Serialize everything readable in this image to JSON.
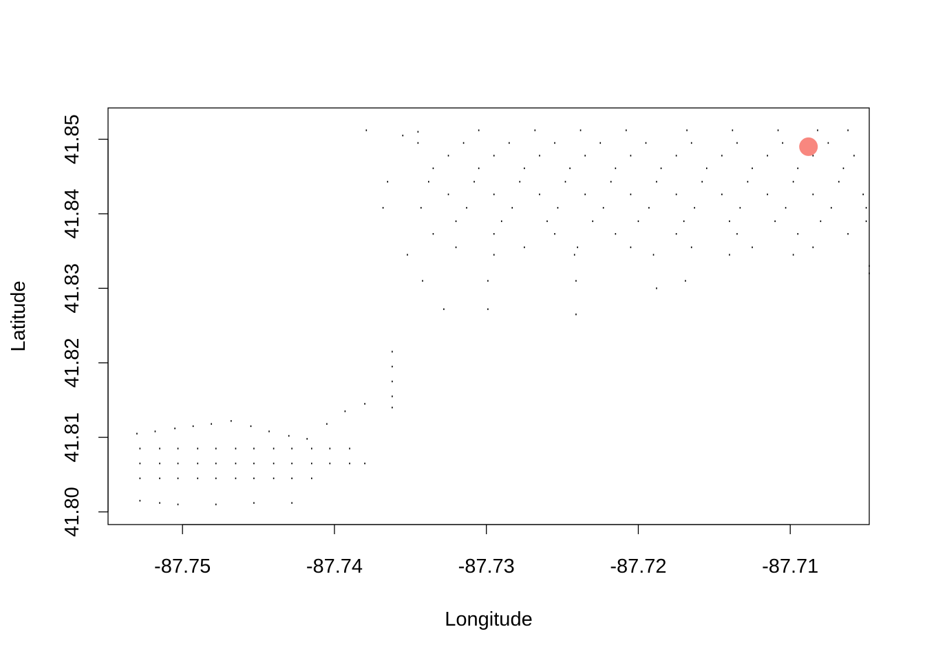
{
  "chart_data": {
    "type": "scatter",
    "title": "",
    "xlabel": "Longitude",
    "ylabel": "Latitude",
    "xlim": [
      -87.7549,
      -87.7048
    ],
    "ylim": [
      41.7983,
      41.8542
    ],
    "x_ticks": [
      -87.75,
      -87.74,
      -87.73,
      -87.72,
      -87.71
    ],
    "x_tick_labels": [
      "-87.75",
      "-87.74",
      "-87.73",
      "-87.72",
      "-87.71"
    ],
    "y_ticks": [
      41.8,
      41.81,
      41.82,
      41.83,
      41.84,
      41.85
    ],
    "y_tick_labels": [
      "41.80",
      "41.81",
      "41.82",
      "41.83",
      "41.84",
      "41.85"
    ],
    "grid": false,
    "highlight_color": "#f8877f",
    "point_color": "#000000",
    "series": [
      {
        "point_style": "small-dot",
        "x": [
          -87.7379,
          -87.7355,
          -87.7345,
          -87.7305,
          -87.7268,
          -87.7238,
          -87.7208,
          -87.7168,
          -87.7138,
          -87.7108,
          -87.7082,
          -87.7062,
          -87.7345,
          -87.7315,
          -87.7285,
          -87.7255,
          -87.7225,
          -87.7195,
          -87.7165,
          -87.7135,
          -87.7105,
          -87.7075,
          -87.7325,
          -87.7295,
          -87.7265,
          -87.7235,
          -87.7205,
          -87.7175,
          -87.7145,
          -87.7115,
          -87.7085,
          -87.7058,
          -87.7335,
          -87.7305,
          -87.7275,
          -87.7245,
          -87.7215,
          -87.7185,
          -87.7155,
          -87.7125,
          -87.7095,
          -87.7065,
          -87.7365,
          -87.7338,
          -87.7308,
          -87.7278,
          -87.7248,
          -87.7218,
          -87.7188,
          -87.7158,
          -87.7128,
          -87.7098,
          -87.7068,
          -87.7325,
          -87.7295,
          -87.7265,
          -87.7235,
          -87.7205,
          -87.7175,
          -87.7145,
          -87.7115,
          -87.7085,
          -87.7052,
          -87.7368,
          -87.7343,
          -87.7313,
          -87.7283,
          -87.7253,
          -87.7223,
          -87.7193,
          -87.7163,
          -87.7133,
          -87.7103,
          -87.7073,
          -87.705,
          -87.732,
          -87.729,
          -87.726,
          -87.723,
          -87.72,
          -87.717,
          -87.714,
          -87.711,
          -87.708,
          -87.705,
          -87.7335,
          -87.7295,
          -87.7255,
          -87.7215,
          -87.7175,
          -87.7135,
          -87.7095,
          -87.7062,
          -87.732,
          -87.7275,
          -87.724,
          -87.7205,
          -87.7165,
          -87.7125,
          -87.7085,
          -87.7352,
          -87.7295,
          -87.7242,
          -87.719,
          -87.714,
          -87.7098,
          -87.7048,
          -87.7342,
          -87.7299,
          -87.7241,
          -87.7188,
          -87.7169,
          -87.7048,
          -87.7328,
          -87.7299,
          -87.7241,
          -87.753,
          -87.7518,
          -87.7505,
          -87.7493,
          -87.7481,
          -87.7468,
          -87.7455,
          -87.7443,
          -87.743,
          -87.7418,
          -87.7405,
          -87.7393,
          -87.738,
          -87.7528,
          -87.7515,
          -87.7503,
          -87.749,
          -87.7478,
          -87.7465,
          -87.7453,
          -87.744,
          -87.7428,
          -87.7415,
          -87.7403,
          -87.739,
          -87.7528,
          -87.7515,
          -87.7503,
          -87.749,
          -87.7478,
          -87.7465,
          -87.7453,
          -87.744,
          -87.7428,
          -87.7415,
          -87.7403,
          -87.739,
          -87.738,
          -87.7528,
          -87.7515,
          -87.7503,
          -87.749,
          -87.7478,
          -87.7465,
          -87.7453,
          -87.744,
          -87.7428,
          -87.7415,
          -87.7528,
          -87.7515,
          -87.7503,
          -87.7478,
          -87.7453,
          -87.7428,
          -87.7362,
          -87.7362,
          -87.7362,
          -87.7362,
          -87.7362
        ],
        "y": [
          41.8512,
          41.8505,
          41.851,
          41.8512,
          41.8512,
          41.8512,
          41.8512,
          41.8512,
          41.8512,
          41.8512,
          41.8512,
          41.8512,
          41.8495,
          41.8495,
          41.8495,
          41.8495,
          41.8495,
          41.8495,
          41.8495,
          41.8495,
          41.8495,
          41.8495,
          41.8478,
          41.8478,
          41.8478,
          41.8478,
          41.8478,
          41.8478,
          41.8478,
          41.8478,
          41.8478,
          41.8478,
          41.8461,
          41.8461,
          41.8461,
          41.8461,
          41.8461,
          41.8461,
          41.8461,
          41.8461,
          41.8461,
          41.8461,
          41.8443,
          41.8443,
          41.8443,
          41.8443,
          41.8443,
          41.8443,
          41.8443,
          41.8443,
          41.8443,
          41.8443,
          41.8443,
          41.8426,
          41.8426,
          41.8426,
          41.8426,
          41.8426,
          41.8426,
          41.8426,
          41.8426,
          41.8426,
          41.8426,
          41.8408,
          41.8408,
          41.8408,
          41.8408,
          41.8408,
          41.8408,
          41.8408,
          41.8408,
          41.8408,
          41.8408,
          41.8408,
          41.8408,
          41.839,
          41.839,
          41.839,
          41.839,
          41.839,
          41.839,
          41.839,
          41.839,
          41.839,
          41.839,
          41.8373,
          41.8373,
          41.8373,
          41.8373,
          41.8373,
          41.8373,
          41.8373,
          41.8373,
          41.8355,
          41.8355,
          41.8355,
          41.8355,
          41.8355,
          41.8355,
          41.8355,
          41.8345,
          41.8345,
          41.8345,
          41.8345,
          41.8345,
          41.8345,
          41.833,
          41.831,
          41.831,
          41.831,
          41.83,
          41.831,
          41.832,
          41.8272,
          41.8272,
          41.8265,
          41.8105,
          41.8108,
          41.8112,
          41.8115,
          41.8118,
          41.8122,
          41.8115,
          41.8108,
          41.8102,
          41.8098,
          41.8118,
          41.8135,
          41.8145,
          41.8085,
          41.8085,
          41.8085,
          41.8085,
          41.8085,
          41.8085,
          41.8085,
          41.8085,
          41.8085,
          41.8085,
          41.8085,
          41.8085,
          41.8065,
          41.8065,
          41.8065,
          41.8065,
          41.8065,
          41.8065,
          41.8065,
          41.8065,
          41.8065,
          41.8065,
          41.8065,
          41.8065,
          41.8065,
          41.8045,
          41.8045,
          41.8045,
          41.8045,
          41.8045,
          41.8045,
          41.8045,
          41.8045,
          41.8045,
          41.8045,
          41.8015,
          41.8012,
          41.801,
          41.801,
          41.8012,
          41.8012,
          41.8215,
          41.8195,
          41.8175,
          41.8155,
          41.814
        ]
      },
      {
        "point_style": "large-filled-circle",
        "x": [
          -87.7088
        ],
        "y": [
          41.849
        ]
      }
    ]
  }
}
